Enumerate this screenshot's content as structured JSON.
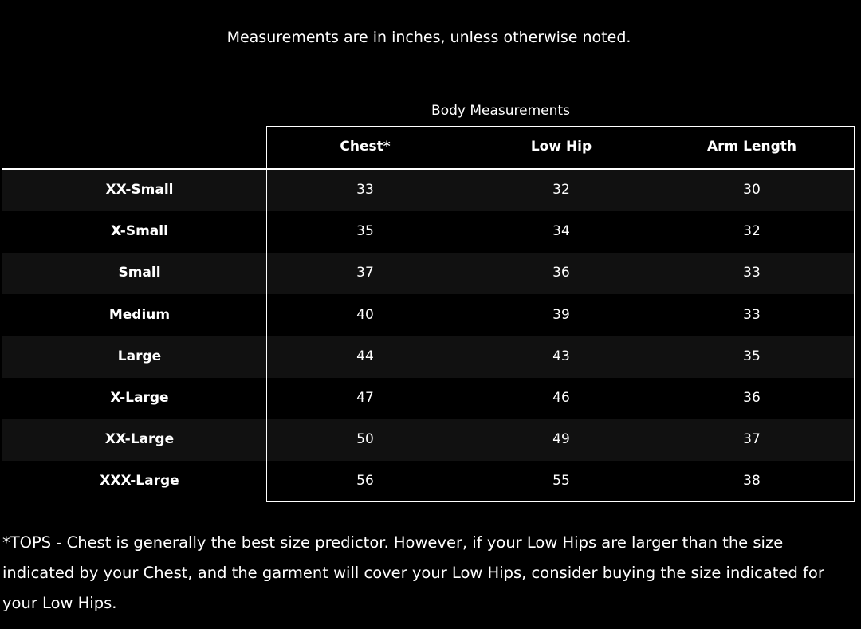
{
  "note": "Measurements are in inches, unless otherwise noted.",
  "table": {
    "caption": "Body Measurements",
    "columns": [
      "Chest*",
      "Low Hip",
      "Arm Length"
    ],
    "rows": [
      {
        "size": "XX-Small",
        "values": [
          "33",
          "32",
          "30"
        ]
      },
      {
        "size": "X-Small",
        "values": [
          "35",
          "34",
          "32"
        ]
      },
      {
        "size": "Small",
        "values": [
          "37",
          "36",
          "33"
        ]
      },
      {
        "size": "Medium",
        "values": [
          "40",
          "39",
          "33"
        ]
      },
      {
        "size": "Large",
        "values": [
          "44",
          "43",
          "35"
        ]
      },
      {
        "size": "X-Large",
        "values": [
          "47",
          "46",
          "36"
        ]
      },
      {
        "size": "XX-Large",
        "values": [
          "50",
          "49",
          "37"
        ]
      },
      {
        "size": "XXX-Large",
        "values": [
          "56",
          "55",
          "38"
        ]
      }
    ]
  },
  "footnote": "*TOPS - Chest is generally the best size predictor. However, if your Low Hips are larger than the size indicated by your Chest, and the garment will cover your Low Hips, consider buying the size indicated for your Low Hips."
}
